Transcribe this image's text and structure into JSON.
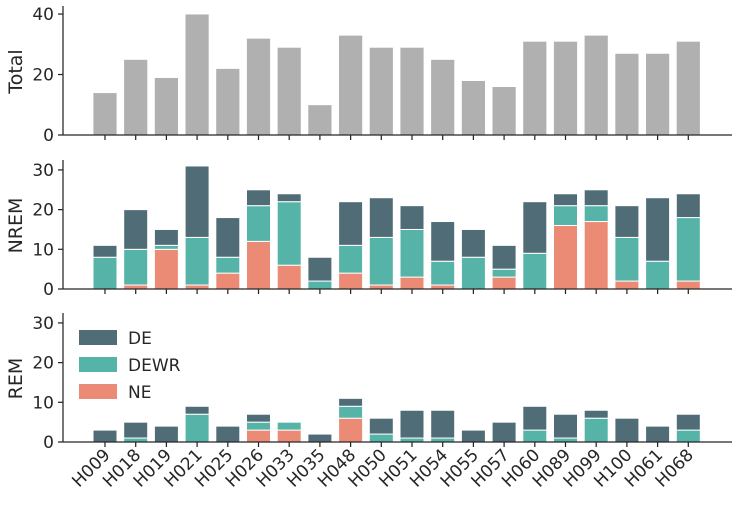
{
  "chart_data": [
    {
      "type": "bar",
      "ylabel": "Total",
      "ylim": [
        0,
        42
      ],
      "yticks": [
        0,
        20,
        40
      ],
      "categories": [
        "H009",
        "H018",
        "H019",
        "H021",
        "H025",
        "H026",
        "H033",
        "H035",
        "H048",
        "H050",
        "H051",
        "H054",
        "H055",
        "H057",
        "H060",
        "H089",
        "H099",
        "H100",
        "H061",
        "H068"
      ],
      "series": [
        {
          "values": [
            14,
            25,
            19,
            40,
            22,
            32,
            29,
            10,
            33,
            29,
            29,
            25,
            18,
            16,
            31,
            31,
            33,
            27,
            27,
            31
          ],
          "color": "#b0b0b0"
        }
      ]
    },
    {
      "type": "bar",
      "stacked": true,
      "ylabel": "NREM",
      "ylim": [
        0,
        32
      ],
      "yticks": [
        0,
        10,
        20,
        30
      ],
      "categories": [
        "H009",
        "H018",
        "H019",
        "H021",
        "H025",
        "H026",
        "H033",
        "H035",
        "H048",
        "H050",
        "H051",
        "H054",
        "H055",
        "H057",
        "H060",
        "H089",
        "H099",
        "H100",
        "H061",
        "H068"
      ],
      "series": [
        {
          "name": "NE",
          "color": "#ec8b75",
          "values": [
            0,
            1,
            10,
            1,
            4,
            12,
            6,
            0,
            4,
            1,
            3,
            1,
            0,
            3,
            0,
            16,
            17,
            2,
            0,
            2
          ]
        },
        {
          "name": "DEWR",
          "color": "#55b3a7",
          "values": [
            8,
            9,
            1,
            12,
            4,
            9,
            16,
            2,
            7,
            12,
            12,
            6,
            8,
            2,
            9,
            5,
            4,
            11,
            7,
            16
          ]
        },
        {
          "name": "DE",
          "color": "#506c77",
          "values": [
            3,
            10,
            4,
            18,
            10,
            4,
            2,
            6,
            11,
            10,
            6,
            10,
            7,
            6,
            13,
            3,
            4,
            8,
            16,
            6
          ]
        }
      ]
    },
    {
      "type": "bar",
      "stacked": true,
      "ylabel": "REM",
      "ylim": [
        0,
        32
      ],
      "yticks": [
        0,
        10,
        20,
        30
      ],
      "legend": [
        "DE",
        "DEWR",
        "NE"
      ],
      "legend_position": "top-left",
      "categories": [
        "H009",
        "H018",
        "H019",
        "H021",
        "H025",
        "H026",
        "H033",
        "H035",
        "H048",
        "H050",
        "H051",
        "H054",
        "H055",
        "H057",
        "H060",
        "H089",
        "H099",
        "H100",
        "H061",
        "H068"
      ],
      "series": [
        {
          "name": "NE",
          "color": "#ec8b75",
          "values": [
            0,
            0,
            0,
            0,
            0,
            3,
            3,
            0,
            6,
            0,
            0,
            0,
            0,
            0,
            0,
            0,
            0,
            0,
            0,
            0
          ]
        },
        {
          "name": "DEWR",
          "color": "#55b3a7",
          "values": [
            0,
            1,
            0,
            7,
            0,
            2,
            2,
            0,
            3,
            2,
            1,
            1,
            0,
            0,
            3,
            1,
            6,
            0,
            0,
            3
          ]
        },
        {
          "name": "DE",
          "color": "#506c77",
          "values": [
            3,
            4,
            4,
            2,
            4,
            2,
            0,
            2,
            2,
            4,
            7,
            7,
            3,
            5,
            6,
            6,
            2,
            6,
            4,
            4
          ]
        }
      ]
    }
  ]
}
